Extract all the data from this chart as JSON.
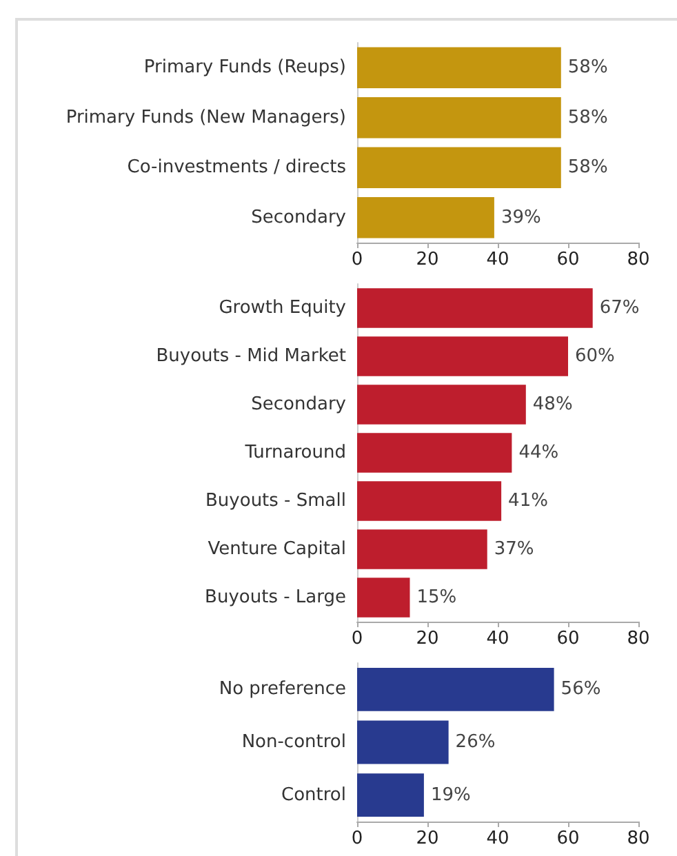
{
  "chart_data": [
    {
      "type": "bar",
      "orientation": "horizontal",
      "categories": [
        "Primary Funds (Reups)",
        "Primary Funds (New Managers)",
        "Co-investments / directs",
        "Secondary"
      ],
      "values": [
        58,
        58,
        58,
        39
      ],
      "color": "#c4960f",
      "value_labels": [
        "58%",
        "58%",
        "58%",
        "39%"
      ],
      "xlim": [
        0,
        80
      ],
      "xticks": [
        0,
        20,
        40,
        60,
        80
      ],
      "grid": false
    },
    {
      "type": "bar",
      "orientation": "horizontal",
      "categories": [
        "Growth Equity",
        "Buyouts - Mid Market",
        "Secondary",
        "Turnaround",
        "Buyouts - Small",
        "Venture Capital",
        "Buyouts - Large"
      ],
      "values": [
        67,
        60,
        48,
        44,
        41,
        37,
        15
      ],
      "color": "#be1e2d",
      "value_labels": [
        "67%",
        "60%",
        "48%",
        "44%",
        "41%",
        "37%",
        "15%"
      ],
      "xlim": [
        0,
        80
      ],
      "xticks": [
        0,
        20,
        40,
        60,
        80
      ],
      "grid": false
    },
    {
      "type": "bar",
      "orientation": "horizontal",
      "categories": [
        "No preference",
        "Non-control",
        "Control"
      ],
      "values": [
        56,
        26,
        19
      ],
      "color": "#283a8f",
      "value_labels": [
        "56%",
        "26%",
        "19%"
      ],
      "xlim": [
        0,
        80
      ],
      "xticks": [
        0,
        20,
        40,
        60,
        80
      ],
      "grid": false
    }
  ]
}
